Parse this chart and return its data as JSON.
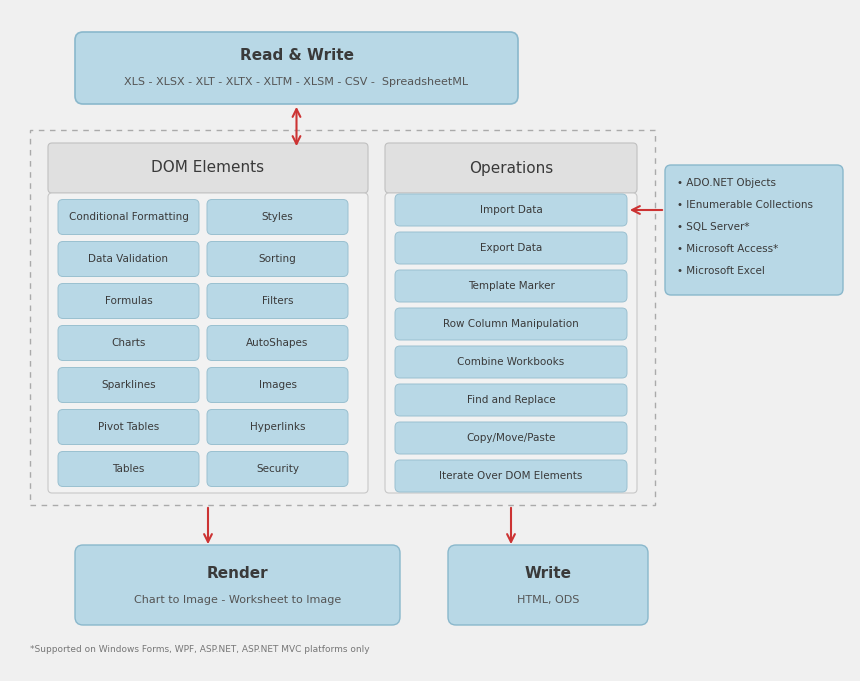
{
  "bg_color": "#f0f0f0",
  "item_blue": "#b8d8e6",
  "item_blue_edge": "#9ac0d0",
  "top_box_blue": "#b8d8e6",
  "top_box_edge": "#8ab8cc",
  "gray_header_bg": "#e0e0e0",
  "side_box_blue": "#b8d8e6",
  "side_box_edge": "#8ab8cc",
  "bottom_box_blue": "#b8d8e6",
  "dashed_bg": "#efefef",
  "dashed_edge": "#aaaaaa",
  "arrow_color": "#cc3333",
  "text_dark": "#3a3a3a",
  "text_gray": "#555555",
  "top_box": {
    "title": "Read & Write",
    "subtitle": "XLS - XLSX - XLT - XLTX - XLTM - XLSM - CSV -  SpreadsheetML"
  },
  "dom_header": "DOM Elements",
  "ops_header": "Operations",
  "dom_left": [
    "Conditional Formatting",
    "Data Validation",
    "Formulas",
    "Charts",
    "Sparklines",
    "Pivot Tables",
    "Tables"
  ],
  "dom_right": [
    "Styles",
    "Sorting",
    "Filters",
    "AutoShapes",
    "Images",
    "Hyperlinks",
    "Security"
  ],
  "ops_items": [
    "Import Data",
    "Export Data",
    "Template Marker",
    "Row Column Manipulation",
    "Combine Workbooks",
    "Find and Replace",
    "Copy/Move/Paste",
    "Iterate Over DOM Elements"
  ],
  "side_lines": [
    "• ADO.NET Objects",
    "• IEnumerable Collections",
    "• SQL Server*",
    "• Microsoft Access*",
    "• Microsoft Excel"
  ],
  "render_title": "Render",
  "render_sub": "Chart to Image - Worksheet to Image",
  "write_title": "Write",
  "write_sub": "HTML, ODS",
  "footnote": "*Supported on Windows Forms, WPF, ASP.NET, ASP.NET MVC platforms only"
}
